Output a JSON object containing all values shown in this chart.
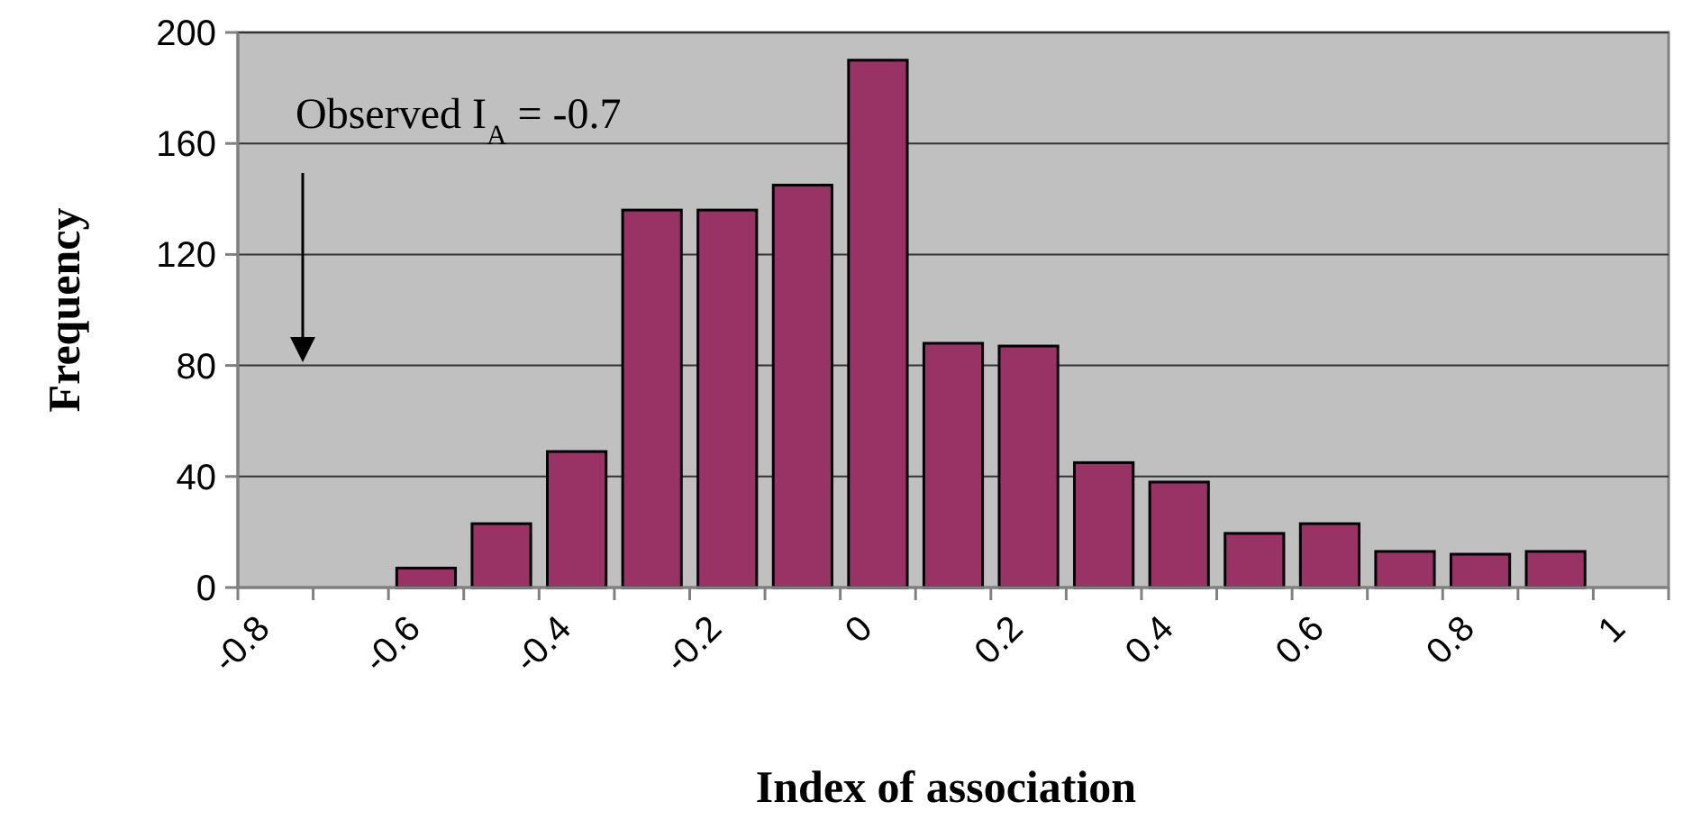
{
  "chart_data": {
    "type": "bar",
    "xlabel": "Index of association",
    "ylabel": "Frequency",
    "categories": [
      "-0.8",
      null,
      "-0.6",
      null,
      "-0.4",
      null,
      "-0.2",
      null,
      "0",
      null,
      "0.2",
      null,
      "0.4",
      null,
      "0.6",
      null,
      "0.8",
      null,
      "1"
    ],
    "values": [
      0,
      0,
      7,
      23,
      49,
      136,
      136,
      145,
      190,
      88,
      87,
      45,
      38,
      19.5,
      23,
      13,
      12,
      13,
      0
    ],
    "color": "#993366",
    "ylim": [
      0,
      200
    ],
    "yticks": [
      0,
      40,
      80,
      120,
      160,
      200
    ],
    "grid": "y",
    "annotations": [
      "Observed I$_{A}$ = -0.7"
    ]
  }
}
